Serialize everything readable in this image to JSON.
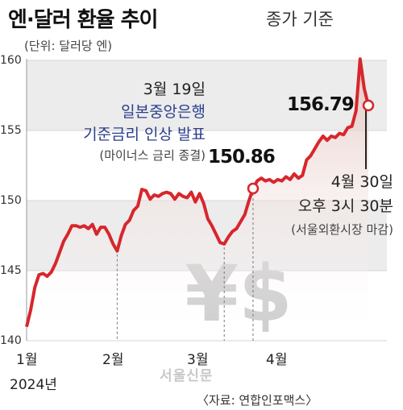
{
  "header": {
    "title": "엔·달러 환율 추이",
    "basis": "종가 기준",
    "unit": "(단위: 달러당 엔)"
  },
  "annotations": {
    "boj_date": "3월 19일",
    "boj_line1": "일본중앙은행",
    "boj_line2": "기준금리 인상 발표",
    "boj_note": "(마이너스 금리 종결)",
    "boj_value": "150.86",
    "last_date": "4월 30일",
    "last_time": "오후 3시 30분",
    "last_note": "(서울외환시장 마감)",
    "last_value": "156.79"
  },
  "footer": {
    "year": "2024년",
    "source": "〈자료: 연합인포맥스〉"
  },
  "watermark": {
    "publisher": "서울신문",
    "symbol": "¥$"
  },
  "colors": {
    "line": "#d7262c",
    "fill_top": "#e9d3cf",
    "band": "#ececec",
    "boj_text": "#2b3f8c"
  },
  "chart_data": {
    "type": "line",
    "title": "엔·달러 환율 추이",
    "ylabel": "(단위: 달러당 엔)",
    "ylim": [
      140,
      160
    ],
    "yticks": [
      140,
      145,
      150,
      155,
      160
    ],
    "xticks": [
      "1월",
      "2월",
      "3월",
      "4월"
    ],
    "series": [
      {
        "values": [
          141.0,
          142.2,
          143.8,
          144.7,
          144.8,
          144.6,
          144.9,
          145.5,
          146.3,
          147.1,
          147.6,
          148.2,
          148.2,
          148.1,
          148.2,
          148.0,
          148.3,
          147.6,
          148.1,
          148.1,
          147.6,
          146.9,
          146.4,
          147.5,
          148.3,
          148.6,
          149.3,
          149.6,
          150.8,
          150.7,
          150.1,
          150.4,
          150.3,
          150.5,
          150.6,
          150.5,
          150.1,
          150.5,
          150.3,
          150.2,
          150.6,
          149.9,
          150.5,
          149.8,
          148.7,
          148.2,
          147.6,
          147.0,
          146.9,
          147.4,
          147.8,
          148.0,
          148.5,
          149.0,
          150.0,
          150.86,
          151.4,
          151.6,
          151.4,
          151.5,
          151.3,
          151.5,
          151.4,
          151.7,
          151.5,
          151.9,
          151.6,
          151.8,
          152.9,
          153.2,
          153.7,
          154.2,
          154.6,
          154.3,
          154.6,
          154.5,
          154.8,
          154.7,
          155.2,
          155.3,
          156.4,
          160.1,
          158.0,
          156.79
        ]
      }
    ]
  }
}
